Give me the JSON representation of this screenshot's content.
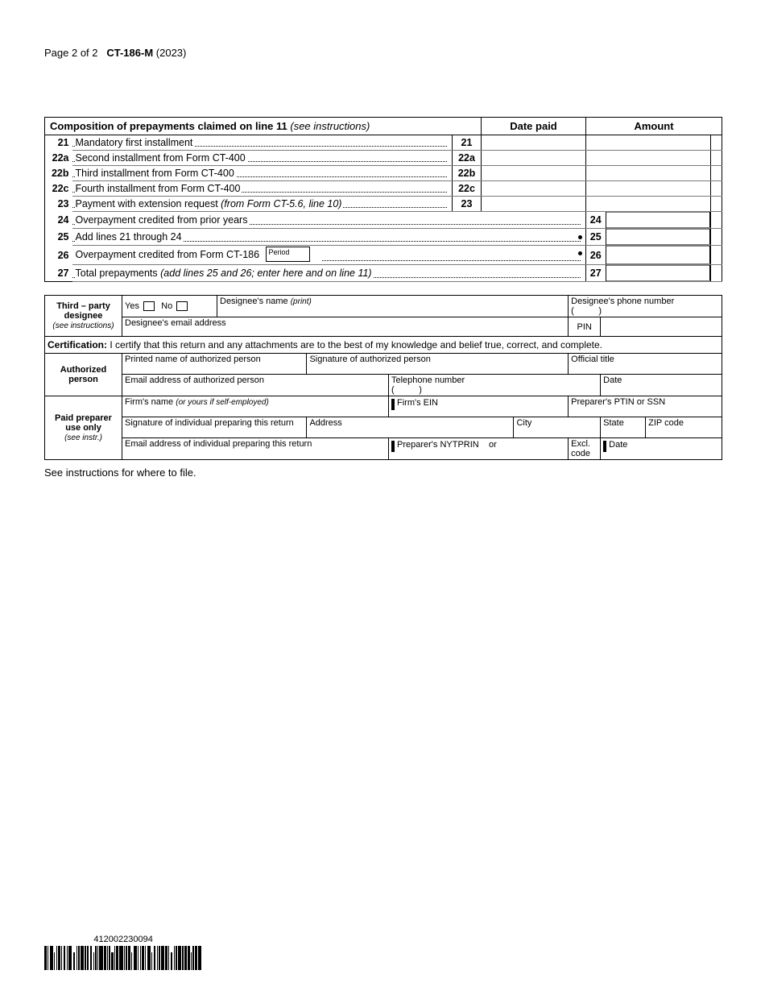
{
  "header": {
    "page_label": "Page 2",
    "page_total": "of 2",
    "form_no": "CT-186-M",
    "year": "(2023)"
  },
  "composition": {
    "title": "Composition of prepayments claimed on line 11",
    "title_note": "(see instructions)",
    "col_date": "Date paid",
    "col_amount": "Amount",
    "rows": [
      {
        "no": "21",
        "code": "21",
        "text": "Mandatory first installment"
      },
      {
        "no": "22a",
        "code": "22a",
        "text": "Second installment from Form CT-400"
      },
      {
        "no": "22b",
        "code": "22b",
        "text": "Third installment from Form CT-400"
      },
      {
        "no": "22c",
        "code": "22c",
        "text": "Fourth installment from Form CT-400"
      },
      {
        "no": "23",
        "code": "23",
        "text": "Payment with extension request",
        "note": "(from Form CT-5.6, line 10)"
      },
      {
        "no": "24",
        "code": "24",
        "text": "Overpayment credited from prior years"
      },
      {
        "no": "25",
        "code": "25",
        "text": "Add lines 21 through 24",
        "bullet": true
      },
      {
        "no": "26",
        "code": "26",
        "text": "Overpayment credited from Form CT-186",
        "period": "Period",
        "bullet": true
      },
      {
        "no": "27",
        "code": "27",
        "text": "Total prepayments",
        "note": "(add lines 25 and 26; enter here and on line 11)"
      }
    ]
  },
  "designee": {
    "section_label": "Third – party designee",
    "sub": "(see instructions)",
    "yes": "Yes",
    "no": "No",
    "name_label": "Designee's name",
    "print": "(print)",
    "phone_label": "Designee's phone number",
    "paren_open": "(",
    "paren_close": ")",
    "email_label": "Designee's email address",
    "pin": "PIN"
  },
  "certification": {
    "label": "Certification:",
    "text": " I certify that this return and any attachments are to the best of my knowledge and belief true, correct, and complete."
  },
  "authorized": {
    "section": "Authorized person",
    "printed": "Printed name of authorized person",
    "signature": "Signature of authorized person",
    "title": "Official title",
    "email": "Email address of authorized person",
    "phone": "Telephone number",
    "date": "Date"
  },
  "preparer": {
    "section": "Paid preparer use only",
    "sub": "(see instr.)",
    "firm": "Firm's name",
    "firm_note": "(or yours if self-employed)",
    "ein": "Firm's EIN",
    "ptin": "Preparer's PTIN or SSN",
    "sig": "Signature of individual preparing this return",
    "address": "Address",
    "city": "City",
    "state": "State",
    "zip": "ZIP code",
    "email": "Email address of individual preparing this return",
    "nytprin": "Preparer's NYTPRIN",
    "or": "or",
    "excl": "Excl. code",
    "date": "Date"
  },
  "footnote": "See instructions for where to file.",
  "barcode": {
    "number": "412002230094",
    "bars": [
      2,
      1,
      3,
      1,
      1,
      2,
      1,
      2,
      1,
      3,
      2,
      1,
      1,
      3,
      1,
      2,
      2,
      1,
      1,
      1,
      3,
      2,
      1,
      1,
      2,
      1,
      2,
      3,
      1,
      1,
      2,
      1,
      3,
      1,
      1,
      2,
      1,
      3,
      1,
      2,
      1,
      1,
      3,
      2,
      1,
      2,
      1,
      1,
      3,
      1,
      2,
      2,
      1,
      1,
      2,
      3
    ]
  },
  "colors": {
    "text": "#000000",
    "border": "#000000",
    "light_rule": "#7a7a7a",
    "background": "#ffffff"
  }
}
